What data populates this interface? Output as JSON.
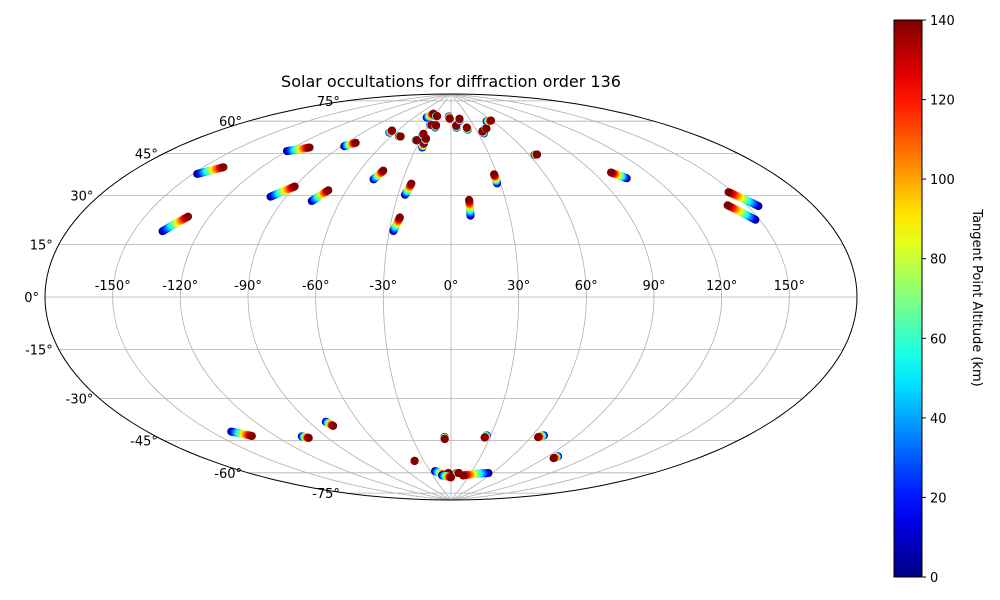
{
  "chart_data": {
    "type": "scatter",
    "projection": "aitoff",
    "title": "Solar occultations for diffraction order 136",
    "grid": true,
    "lon_ticks": [
      "-150°",
      "-120°",
      "-90°",
      "-60°",
      "-30°",
      "0°",
      "30°",
      "60°",
      "90°",
      "120°",
      "150°"
    ],
    "lon_tick_values": [
      -150,
      -120,
      -90,
      -60,
      -30,
      0,
      30,
      60,
      90,
      120,
      150
    ],
    "lat_ticks": [
      "-75°",
      "-60°",
      "-45°",
      "-30°",
      "-15°",
      "0°",
      "15°",
      "30°",
      "45°",
      "60°",
      "75°"
    ],
    "lat_tick_values": [
      -75,
      -60,
      -45,
      -30,
      -15,
      0,
      15,
      30,
      45,
      60,
      75
    ],
    "colorbar": {
      "label": "Tangent Point Altitude (km)",
      "ticks": [
        "0",
        "20",
        "40",
        "60",
        "80",
        "100",
        "120",
        "140"
      ],
      "tick_values": [
        0,
        20,
        40,
        60,
        80,
        100,
        120,
        140
      ],
      "range": [
        0,
        140
      ],
      "colormap": "jet"
    },
    "tracks": [
      {
        "start": [
          -148,
          43
        ],
        "end": [
          -140,
          47
        ]
      },
      {
        "start": [
          -137,
          23
        ],
        "end": [
          -130,
          29
        ]
      },
      {
        "start": [
          -120,
          57
        ],
        "end": [
          -110,
          60
        ]
      },
      {
        "start": [
          -98,
          40
        ],
        "end": [
          -90,
          45
        ]
      },
      {
        "start": [
          -88,
          63
        ],
        "end": [
          -83,
          65
        ]
      },
      {
        "start": [
          -75,
          40
        ],
        "end": [
          -70,
          45
        ]
      },
      {
        "start": [
          -48,
          51
        ],
        "end": [
          -45,
          55
        ]
      },
      {
        "start": [
          -53,
          70
        ],
        "end": [
          -51,
          70
        ]
      },
      {
        "start": [
          -66,
          71
        ],
        "end": [
          -66,
          72
        ]
      },
      {
        "start": [
          -34,
          69
        ],
        "end": [
          -33,
          69
        ]
      },
      {
        "start": [
          -41,
          79
        ],
        "end": [
          -35,
          81
        ]
      },
      {
        "start": [
          -30,
          71
        ],
        "end": [
          -30,
          72
        ]
      },
      {
        "start": [
          -28,
          76
        ],
        "end": [
          -26,
          76
        ]
      },
      {
        "start": [
          -25,
          66
        ],
        "end": [
          -25,
          68
        ]
      },
      {
        "start": [
          -25,
          69
        ],
        "end": [
          -25,
          70
        ]
      },
      {
        "start": [
          -20,
          75
        ],
        "end": [
          -20,
          76
        ]
      },
      {
        "start": [
          -26,
          45
        ],
        "end": [
          -24,
          50
        ]
      },
      {
        "start": [
          -28,
          29
        ],
        "end": [
          -26,
          35
        ]
      },
      {
        "start": [
          -28,
          80
        ],
        "end": [
          -25,
          80
        ]
      },
      {
        "start": [
          -4,
          80
        ],
        "end": [
          -2,
          79
        ]
      },
      {
        "start": [
          10,
          36
        ],
        "end": [
          10,
          43
        ]
      },
      {
        "start": [
          7,
          75
        ],
        "end": [
          7,
          76
        ]
      },
      {
        "start": [
          13,
          78
        ],
        "end": [
          14,
          79
        ]
      },
      {
        "start": [
          20,
          74
        ],
        "end": [
          20,
          75
        ]
      },
      {
        "start": [
          36,
          72
        ],
        "end": [
          36,
          73
        ]
      },
      {
        "start": [
          42,
          74
        ],
        "end": [
          43,
          74
        ]
      },
      {
        "start": [
          28,
          50
        ],
        "end": [
          28,
          54
        ]
      },
      {
        "start": [
          52,
          77
        ],
        "end": [
          59,
          77
        ]
      },
      {
        "start": [
          64,
          61
        ],
        "end": [
          66,
          61
        ]
      },
      {
        "start": [
          105,
          47
        ],
        "end": [
          100,
          50
        ]
      },
      {
        "start": [
          148,
          26
        ],
        "end": [
          141,
          32
        ]
      },
      {
        "start": [
          155,
          30
        ],
        "end": [
          148,
          36
        ]
      },
      {
        "start": [
          -140,
          -49
        ],
        "end": [
          -133,
          -52
        ]
      },
      {
        "start": [
          -105,
          -56
        ],
        "end": [
          -102,
          -57
        ]
      },
      {
        "start": [
          -80,
          -52
        ],
        "end": [
          -78,
          -54
        ]
      },
      {
        "start": [
          -40,
          -72
        ],
        "end": [
          -40,
          -72
        ]
      },
      {
        "start": [
          -5,
          -62
        ],
        "end": [
          -5,
          -63
        ]
      },
      {
        "start": [
          27,
          -61
        ],
        "end": [
          26,
          -62
        ]
      },
      {
        "start": [
          68,
          -59
        ],
        "end": [
          65,
          -60
        ]
      },
      {
        "start": [
          98,
          -66
        ],
        "end": [
          97,
          -67
        ]
      },
      {
        "start": [
          -23,
          -77
        ],
        "end": [
          -10,
          -79
        ]
      },
      {
        "start": [
          -5,
          -79
        ],
        "end": [
          -4,
          -78
        ]
      },
      {
        "start": [
          55,
          -77
        ],
        "end": [
          20,
          -79
        ]
      },
      {
        "start": [
          8,
          -78
        ],
        "end": [
          12,
          -78
        ]
      },
      {
        "start": [
          -15,
          -79
        ],
        "end": [
          0,
          -80
        ]
      }
    ]
  }
}
